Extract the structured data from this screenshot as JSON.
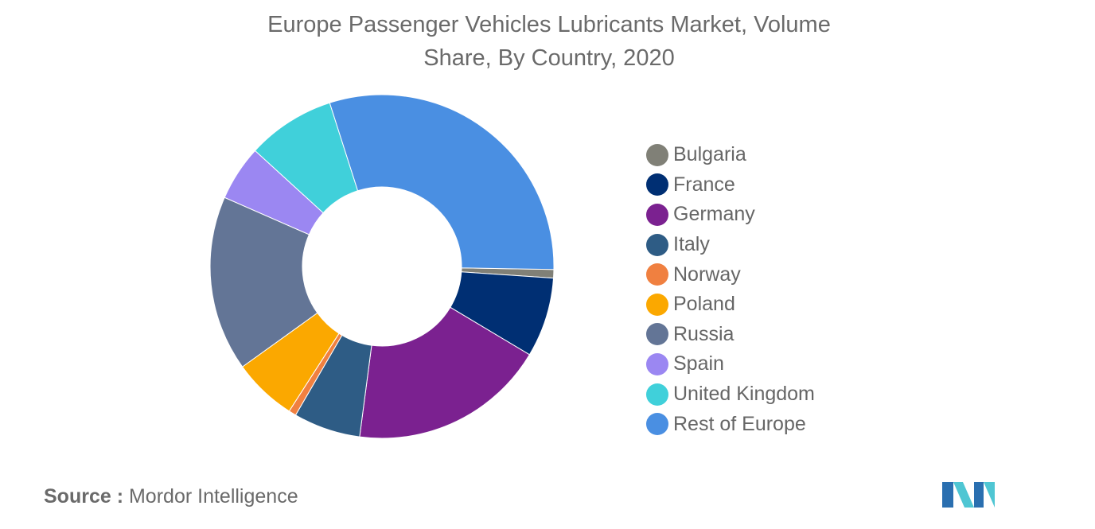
{
  "title_line1": "Europe Passenger Vehicles Lubricants Market, Volume",
  "title_line2": "Share, By Country, 2020",
  "source_label": "Source :",
  "source_value": "Mordor Intelligence",
  "logo_icon": "mordor-intelligence-logo-icon",
  "chart_data": {
    "type": "pie",
    "variant": "donut",
    "unit": "%",
    "legend_position": "right",
    "start_angle_deg": 91,
    "slices": [
      {
        "label": "Bulgaria",
        "value": 0.8,
        "color": "#808077"
      },
      {
        "label": "France",
        "value": 7.5,
        "color": "#002f73"
      },
      {
        "label": "Germany",
        "value": 18.5,
        "color": "#7b2190"
      },
      {
        "label": "Italy",
        "value": 6.3,
        "color": "#2e5c85"
      },
      {
        "label": "Norway",
        "value": 0.7,
        "color": "#f08040"
      },
      {
        "label": "Poland",
        "value": 6.0,
        "color": "#fba800"
      },
      {
        "label": "Russia",
        "value": 16.5,
        "color": "#637596"
      },
      {
        "label": "Spain",
        "value": 5.2,
        "color": "#9b87f2"
      },
      {
        "label": "United Kingdom",
        "value": 8.3,
        "color": "#40d0da"
      },
      {
        "label": "Rest of Europe",
        "value": 30.2,
        "color": "#4a8fe2"
      }
    ]
  }
}
